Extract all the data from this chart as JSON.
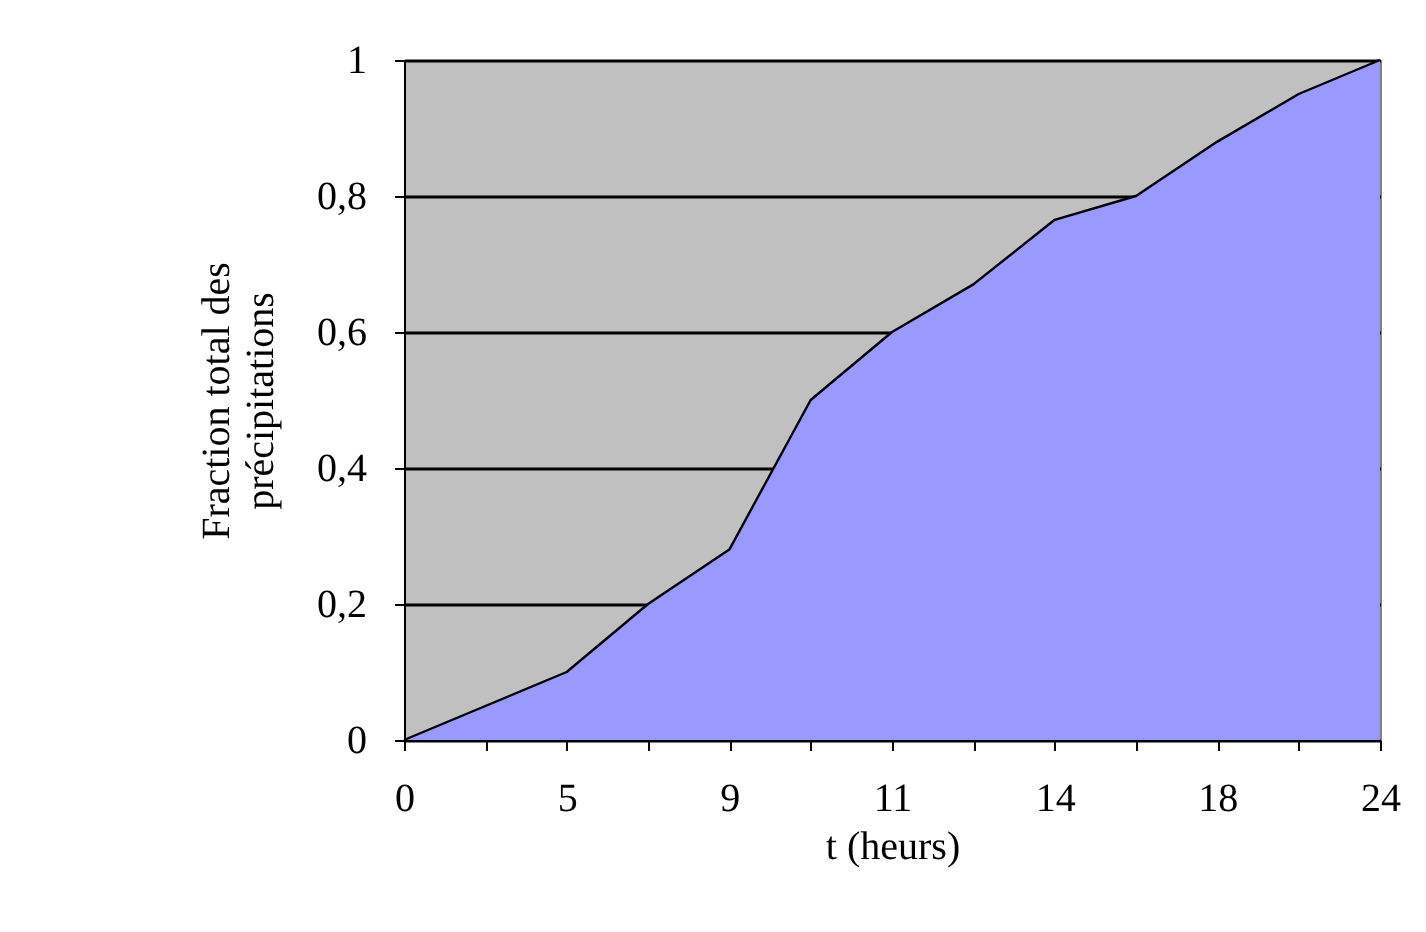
{
  "chart_data": {
    "type": "area",
    "xlabel": "t (heurs)",
    "ylabel": "Fraction total des précipitations",
    "categories": [
      "0",
      null,
      "5",
      null,
      "9",
      null,
      "11",
      null,
      "14",
      null,
      "18",
      null,
      "24"
    ],
    "series": [
      {
        "color": "#9999ff",
        "values": [
          0,
          0.05,
          0.1,
          0.2,
          0.28,
          0.5,
          0.6,
          0.67,
          0.765,
          0.8,
          0.88,
          0.95,
          1.0
        ]
      }
    ],
    "ylim": [
      0,
      1
    ],
    "yticks": [
      0,
      {
        "value": 0.2,
        "label": "0,2"
      },
      {
        "value": 0.4,
        "label": "0,4"
      },
      {
        "value": 0.6,
        "label": "0,6"
      },
      {
        "value": 0.8,
        "label": "0,8"
      },
      1
    ],
    "grid": "y",
    "marker": "none",
    "line_style": "solid"
  }
}
